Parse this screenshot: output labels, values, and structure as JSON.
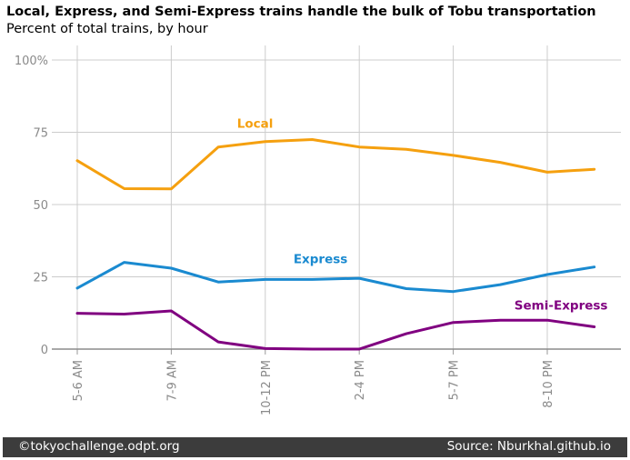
{
  "title": "Local, Express, and Semi-Express trains handle the bulk of Tobu transportation",
  "subtitle": "Percent of total trains, by hour",
  "footer": {
    "left": "©tokyochallenge.odpt.org",
    "right": "Source: Nburkhal.github.io"
  },
  "chart_data": {
    "type": "line",
    "title": "Local, Express, and Semi-Express trains handle the bulk of Tobu transportation",
    "subtitle": "Percent of total trains, by hour",
    "xlabel": "",
    "ylabel": "",
    "ylim": [
      0,
      100
    ],
    "yticks": [
      0,
      25,
      50,
      75,
      100
    ],
    "ytick_labels": [
      "0",
      "25",
      "50",
      "75",
      "100%"
    ],
    "xticks": [
      0,
      2,
      4,
      6,
      8,
      10
    ],
    "xtick_labels": [
      "5-6 AM",
      "7-9 AM",
      "10-12 PM",
      "2-4 PM",
      "5-7 PM",
      "8-10 PM"
    ],
    "xlim": [
      0,
      11
    ],
    "grid": true,
    "series": [
      {
        "name": "Local",
        "color": "#f5a00f",
        "label_at": [
          3.4,
          76.5
        ],
        "x": [
          0,
          1,
          2,
          3,
          4,
          5,
          6,
          7,
          8,
          9,
          10,
          11
        ],
        "values": [
          65.2,
          55.5,
          55.4,
          69.9,
          71.8,
          72.5,
          69.9,
          69.1,
          67.0,
          64.6,
          61.2,
          62.2
        ]
      },
      {
        "name": "Express",
        "color": "#1a8ad0",
        "label_at": [
          4.6,
          29.7
        ],
        "x": [
          0,
          1,
          2,
          3,
          4,
          5,
          6,
          7,
          8,
          9,
          10,
          11
        ],
        "values": [
          21.1,
          30.0,
          28.0,
          23.2,
          24.1,
          24.1,
          24.5,
          20.9,
          19.9,
          22.3,
          25.8,
          28.4
        ]
      },
      {
        "name": "Semi-Express",
        "color": "#800080",
        "label_at": [
          9.3,
          13.7
        ],
        "x": [
          0,
          1,
          2,
          3,
          4,
          5,
          6,
          7,
          8,
          9,
          10,
          11
        ],
        "values": [
          12.4,
          12.1,
          13.2,
          2.5,
          0.2,
          0.0,
          0.0,
          5.3,
          9.2,
          10.0,
          10.0,
          7.7
        ]
      }
    ]
  }
}
